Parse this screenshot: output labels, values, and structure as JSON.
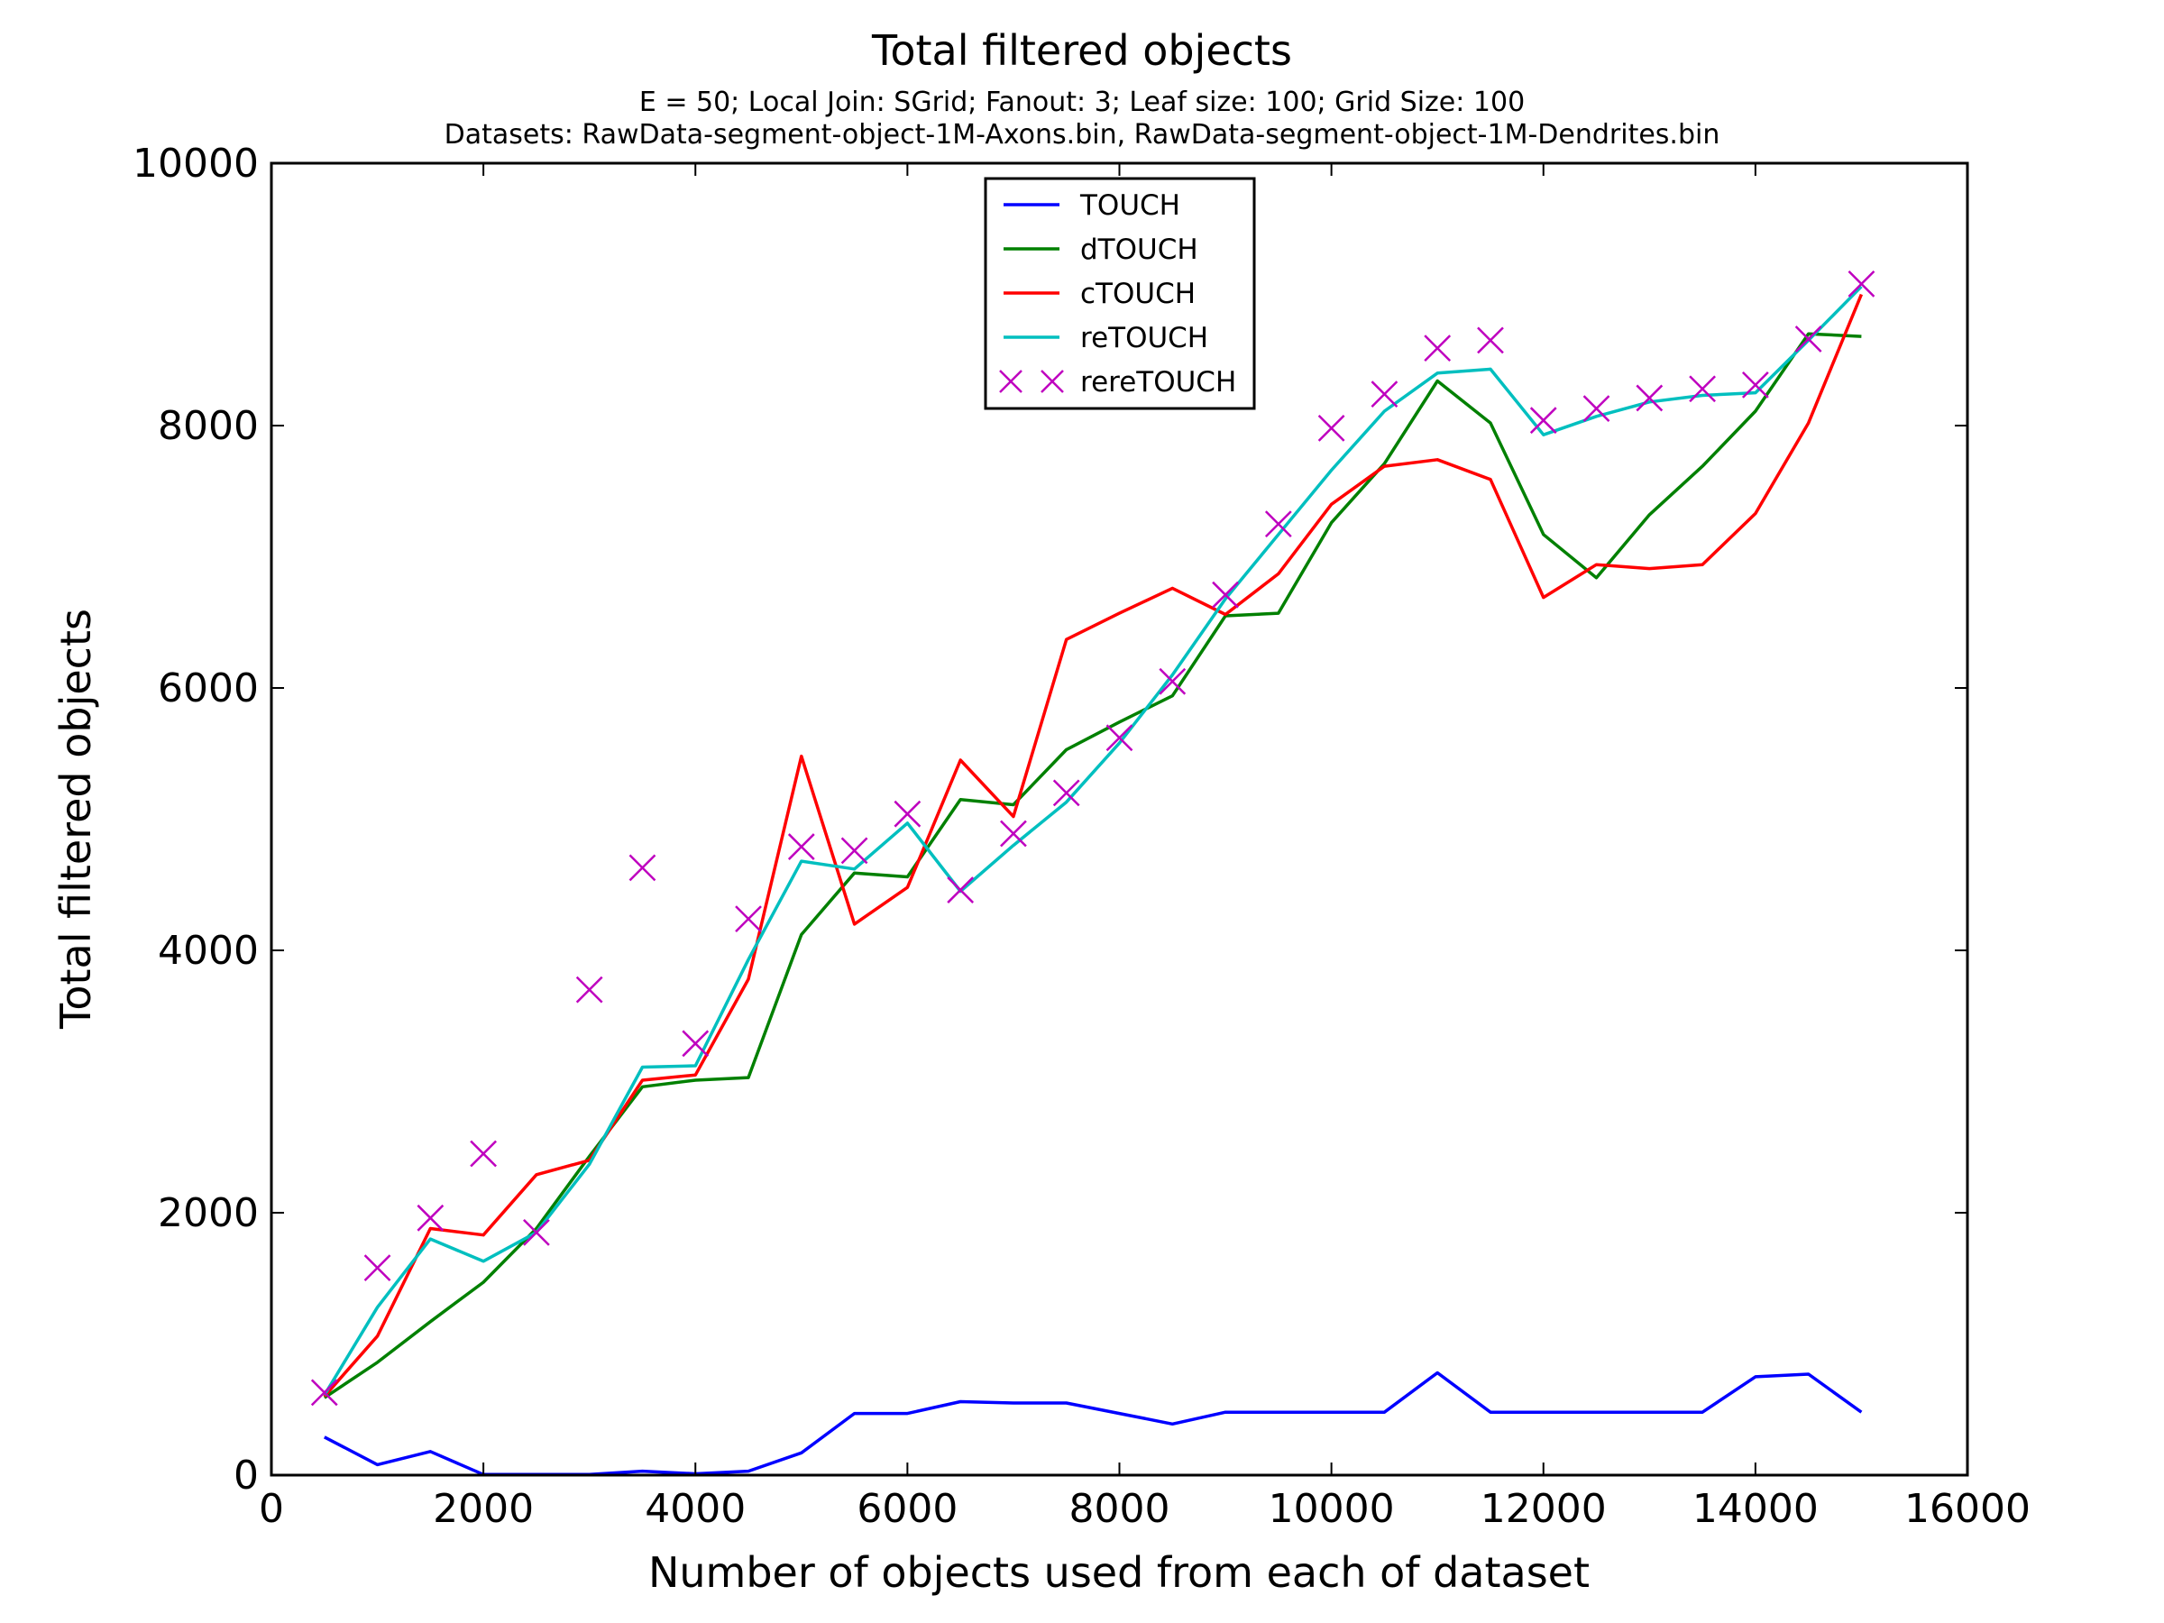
{
  "chart_data": {
    "type": "line",
    "title": "Total filtered objects",
    "subtitle_lines": [
      "E = 50; Local Join: SGrid; Fanout: 3; Leaf size: 100; Grid Size: 100",
      "Datasets: RawData-segment-object-1M-Axons.bin, RawData-segment-object-1M-Dendrites.bin"
    ],
    "xlabel": "Number of objects used from each of dataset",
    "ylabel": "Total filtered objects",
    "xlim": [
      0,
      16000
    ],
    "ylim": [
      0,
      10000
    ],
    "xticks": [
      "0",
      "2000",
      "4000",
      "6000",
      "8000",
      "10000",
      "12000",
      "14000",
      "16000"
    ],
    "yticks": [
      "0",
      "2000",
      "4000",
      "6000",
      "8000",
      "10000"
    ],
    "legend_position": "top-center",
    "grid": false,
    "x": [
      500,
      1000,
      1500,
      2000,
      2500,
      3000,
      3500,
      4000,
      4500,
      5000,
      5500,
      6000,
      6500,
      7000,
      7500,
      8000,
      8500,
      9000,
      9500,
      10000,
      10500,
      11000,
      11500,
      12000,
      12500,
      13000,
      13500,
      14000,
      14500,
      15000
    ],
    "series": [
      {
        "name": "TOUCH",
        "color": "#0000ff",
        "style": "line",
        "values": [
          290,
          80,
          180,
          5,
          5,
          5,
          30,
          10,
          30,
          170,
          470,
          470,
          560,
          550,
          550,
          470,
          390,
          480,
          480,
          480,
          480,
          780,
          480,
          480,
          480,
          480,
          480,
          750,
          770,
          480
        ]
      },
      {
        "name": "dTOUCH",
        "color": "#008000",
        "style": "line",
        "values": [
          590,
          860,
          1170,
          1470,
          1880,
          2430,
          2960,
          3010,
          3030,
          4120,
          4590,
          4560,
          5150,
          5110,
          5530,
          5740,
          5940,
          6550,
          6570,
          7260,
          7710,
          8340,
          8020,
          7170,
          6840,
          7320,
          7690,
          8110,
          8700,
          8680
        ]
      },
      {
        "name": "cTOUCH",
        "color": "#ff0000",
        "style": "line",
        "values": [
          600,
          1060,
          1880,
          1830,
          2290,
          2400,
          3010,
          3050,
          3780,
          5480,
          4200,
          4480,
          5450,
          5020,
          6370,
          6570,
          6760,
          6560,
          6870,
          7400,
          7690,
          7740,
          7590,
          6690,
          6940,
          6910,
          6940,
          7330,
          8020,
          9000
        ]
      },
      {
        "name": "reTOUCH",
        "color": "#00bfbf",
        "style": "line",
        "values": [
          610,
          1280,
          1800,
          1630,
          1850,
          2370,
          3110,
          3120,
          3930,
          4680,
          4620,
          4970,
          4450,
          4800,
          5130,
          5580,
          6100,
          6680,
          7170,
          7660,
          8110,
          8400,
          8430,
          7930,
          8070,
          8180,
          8230,
          8250,
          8650,
          9060
        ]
      },
      {
        "name": "rereTOUCH",
        "color": "#bf00bf",
        "style": "x",
        "values": [
          630,
          1580,
          1960,
          2450,
          1850,
          3700,
          4630,
          3290,
          4240,
          4790,
          4760,
          5040,
          4460,
          4890,
          5200,
          5620,
          6050,
          6710,
          7250,
          7980,
          8240,
          8590,
          8650,
          8040,
          8130,
          8210,
          8280,
          8310,
          8660,
          9080
        ]
      }
    ]
  }
}
